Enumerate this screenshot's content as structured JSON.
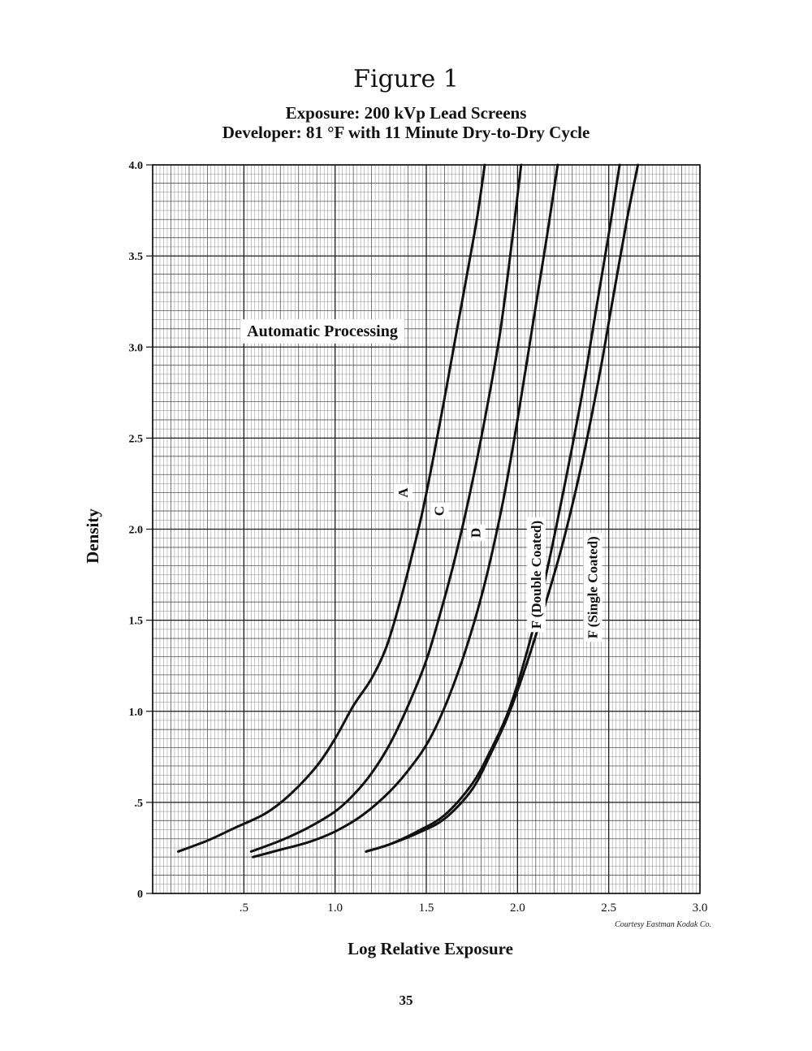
{
  "page": {
    "title": "Figure 1",
    "subtitle_1": "Exposure: 200 kVp Lead Screens",
    "subtitle_2": "Developer: 81 °F with 11 Minute Dry-to-Dry Cycle",
    "credit": "Courtesy Eastman Kodak Co.",
    "page_number": "35"
  },
  "chart_data": {
    "type": "line",
    "title": "Figure 1",
    "xlabel": "Log Relative Exposure",
    "ylabel": "Density",
    "xlim": [
      0,
      3.0
    ],
    "ylim": [
      0,
      4.0
    ],
    "x_ticks": [
      {
        "value": 0.5,
        "label": ".5"
      },
      {
        "value": 1.0,
        "label": "1.0"
      },
      {
        "value": 1.5,
        "label": "1.5"
      },
      {
        "value": 2.0,
        "label": "2.0"
      },
      {
        "value": 2.5,
        "label": "2.5"
      },
      {
        "value": 3.0,
        "label": "3.0"
      }
    ],
    "y_ticks": [
      {
        "value": 0,
        "label": "0"
      },
      {
        "value": 0.5,
        "label": ".5"
      },
      {
        "value": 1.0,
        "label": "1.0"
      },
      {
        "value": 1.5,
        "label": "1.5"
      },
      {
        "value": 2.0,
        "label": "2.0"
      },
      {
        "value": 2.5,
        "label": "2.5"
      },
      {
        "value": 3.0,
        "label": "3.0"
      },
      {
        "value": 3.5,
        "label": "3.5"
      },
      {
        "value": 4.0,
        "label": "4.0"
      }
    ],
    "grid": true,
    "annotation": "Automatic Processing",
    "series": [
      {
        "name": "A",
        "label_at": [
          1.37,
          2.2
        ],
        "x": [
          0.14,
          0.3,
          0.45,
          0.62,
          0.75,
          0.9,
          1.0,
          1.1,
          1.2,
          1.28,
          1.35,
          1.42,
          1.48,
          1.54,
          1.6,
          1.66,
          1.72,
          1.78,
          1.82
        ],
        "y": [
          0.23,
          0.29,
          0.36,
          0.44,
          0.54,
          0.7,
          0.85,
          1.03,
          1.18,
          1.35,
          1.58,
          1.85,
          2.1,
          2.4,
          2.72,
          3.05,
          3.38,
          3.72,
          4.0
        ]
      },
      {
        "name": "C",
        "label_at": [
          1.57,
          2.1
        ],
        "x": [
          0.54,
          0.7,
          0.85,
          1.0,
          1.1,
          1.2,
          1.3,
          1.4,
          1.5,
          1.58,
          1.66,
          1.74,
          1.82,
          1.9,
          1.96,
          2.02
        ],
        "y": [
          0.23,
          0.29,
          0.36,
          0.45,
          0.54,
          0.66,
          0.82,
          1.03,
          1.28,
          1.55,
          1.85,
          2.2,
          2.6,
          3.05,
          3.5,
          4.0
        ]
      },
      {
        "name": "D",
        "label_at": [
          1.77,
          1.98
        ],
        "x": [
          0.55,
          0.7,
          0.85,
          1.0,
          1.15,
          1.3,
          1.42,
          1.52,
          1.62,
          1.72,
          1.82,
          1.92,
          2.0,
          2.08,
          2.16,
          2.22
        ],
        "y": [
          0.2,
          0.24,
          0.28,
          0.34,
          0.43,
          0.56,
          0.7,
          0.85,
          1.07,
          1.35,
          1.7,
          2.15,
          2.6,
          3.1,
          3.6,
          4.0
        ]
      },
      {
        "name": "F (Double Coated)",
        "label_at": [
          2.1,
          1.75
        ],
        "x": [
          1.17,
          1.3,
          1.45,
          1.6,
          1.75,
          1.85,
          1.95,
          2.05,
          2.15,
          2.25,
          2.35,
          2.43,
          2.5,
          2.56
        ],
        "y": [
          0.23,
          0.27,
          0.34,
          0.43,
          0.6,
          0.78,
          1.0,
          1.32,
          1.72,
          2.2,
          2.72,
          3.2,
          3.62,
          4.0
        ]
      },
      {
        "name": "F (Single Coated)",
        "label_at": [
          2.41,
          1.68
        ],
        "x": [
          1.17,
          1.3,
          1.45,
          1.6,
          1.75,
          1.85,
          1.95,
          2.05,
          2.15,
          2.25,
          2.35,
          2.45,
          2.52,
          2.6,
          2.66
        ],
        "y": [
          0.23,
          0.27,
          0.33,
          0.41,
          0.57,
          0.76,
          0.98,
          1.26,
          1.58,
          1.93,
          2.35,
          2.85,
          3.25,
          3.7,
          4.0
        ]
      }
    ]
  }
}
